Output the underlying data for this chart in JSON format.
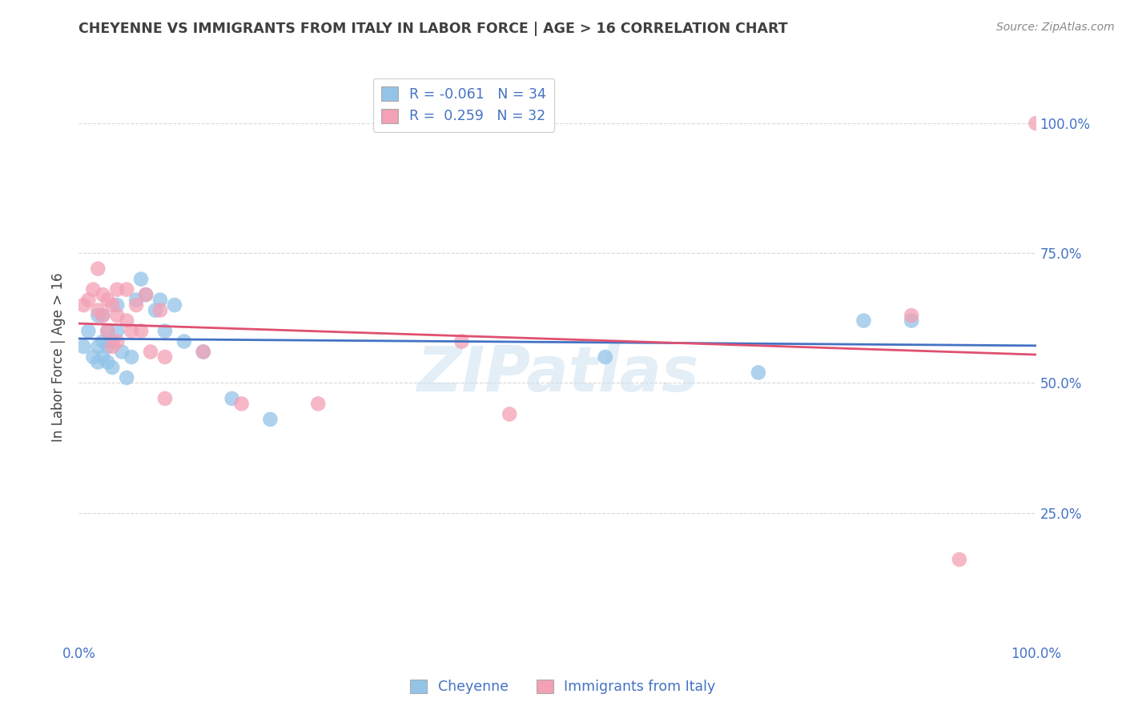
{
  "title": "CHEYENNE VS IMMIGRANTS FROM ITALY IN LABOR FORCE | AGE > 16 CORRELATION CHART",
  "source": "Source: ZipAtlas.com",
  "ylabel": "In Labor Force | Age > 16",
  "legend_label1": "Cheyenne",
  "legend_label2": "Immigrants from Italy",
  "R1": -0.061,
  "N1": 34,
  "R2": 0.259,
  "N2": 32,
  "color1": "#93c4e8",
  "color2": "#f4a0b5",
  "line_color1": "#4472c4",
  "line_color2": "#e05070",
  "text_color": "#4472c4",
  "title_color": "#404040",
  "watermark": "ZIPatlas",
  "cheyenne_x": [
    0.005,
    0.01,
    0.015,
    0.02,
    0.02,
    0.02,
    0.025,
    0.025,
    0.025,
    0.03,
    0.03,
    0.03,
    0.035,
    0.035,
    0.04,
    0.04,
    0.045,
    0.05,
    0.055,
    0.06,
    0.065,
    0.07,
    0.08,
    0.085,
    0.09,
    0.1,
    0.11,
    0.13,
    0.16,
    0.2,
    0.55,
    0.71,
    0.82,
    0.87
  ],
  "cheyenne_y": [
    0.57,
    0.6,
    0.55,
    0.63,
    0.57,
    0.54,
    0.63,
    0.58,
    0.55,
    0.6,
    0.57,
    0.54,
    0.58,
    0.53,
    0.65,
    0.6,
    0.56,
    0.51,
    0.55,
    0.66,
    0.7,
    0.67,
    0.64,
    0.66,
    0.6,
    0.65,
    0.58,
    0.56,
    0.47,
    0.43,
    0.55,
    0.52,
    0.62,
    0.62
  ],
  "italy_x": [
    0.005,
    0.01,
    0.015,
    0.02,
    0.02,
    0.025,
    0.025,
    0.03,
    0.03,
    0.035,
    0.035,
    0.04,
    0.04,
    0.04,
    0.05,
    0.05,
    0.055,
    0.06,
    0.065,
    0.07,
    0.075,
    0.085,
    0.09,
    0.09,
    0.13,
    0.17,
    0.25,
    0.4,
    0.45,
    0.87,
    0.92,
    1.0
  ],
  "italy_y": [
    0.65,
    0.66,
    0.68,
    0.72,
    0.64,
    0.67,
    0.63,
    0.66,
    0.6,
    0.65,
    0.57,
    0.68,
    0.63,
    0.58,
    0.68,
    0.62,
    0.6,
    0.65,
    0.6,
    0.67,
    0.56,
    0.64,
    0.55,
    0.47,
    0.56,
    0.46,
    0.46,
    0.58,
    0.44,
    0.63,
    0.16,
    1.0
  ],
  "xlim": [
    0.0,
    1.0
  ],
  "ylim": [
    0.0,
    1.1
  ],
  "plot_ylim": [
    0.0,
    1.05
  ],
  "background_color": "#ffffff",
  "grid_color": "#d8d8d8"
}
